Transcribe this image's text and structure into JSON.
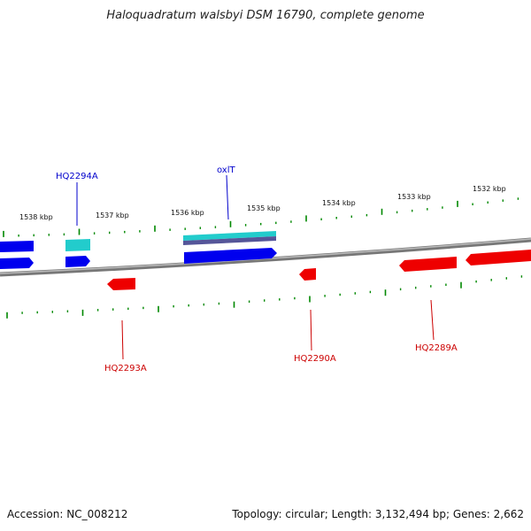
{
  "title": "Haloquadratum walsbyi DSM 16790, complete genome",
  "footer": {
    "accession": "Accession: NC_008212",
    "info": "Topology: circular; Length: 3,132,494 bp; Genes: 2,662"
  },
  "colors": {
    "forward_gene": "#0000ee",
    "reverse_gene": "#ee0000",
    "rna": "#22cccc",
    "tick": "#008800",
    "backbone": "#888888"
  },
  "scale_labels": [
    "1538 kbp",
    "1537 kbp",
    "1536 kbp",
    "1535 kbp",
    "1534 kbp",
    "1533 kbp",
    "1532 kbp"
  ],
  "gene_labels": {
    "top": [
      {
        "text": "HQ2294A",
        "color": "#0000cc"
      },
      {
        "text": "oxlT",
        "color": "#0000cc"
      }
    ],
    "bottom": [
      {
        "text": "HQ2293A",
        "color": "#cc0000"
      },
      {
        "text": "HQ2290A",
        "color": "#cc0000"
      },
      {
        "text": "HQ2289A",
        "color": "#cc0000"
      }
    ]
  }
}
